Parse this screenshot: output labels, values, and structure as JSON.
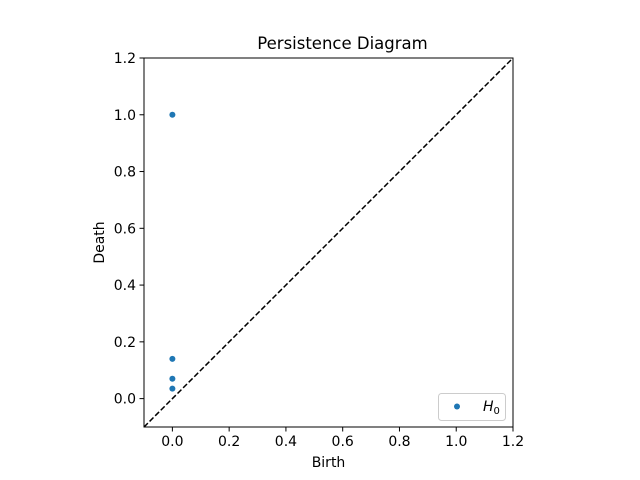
{
  "chart_data": {
    "type": "scatter",
    "title": "Persistence Diagram",
    "xlabel": "Birth",
    "ylabel": "Death",
    "xlim": [
      -0.1,
      1.2
    ],
    "ylim": [
      -0.1,
      1.2
    ],
    "xticks": [
      0.0,
      0.2,
      0.4,
      0.6,
      0.8,
      1.0,
      1.2
    ],
    "yticks": [
      0.0,
      0.2,
      0.4,
      0.6,
      0.8,
      1.0,
      1.2
    ],
    "xtick_labels": [
      "0.0",
      "0.2",
      "0.4",
      "0.6",
      "0.8",
      "1.0",
      "1.2"
    ],
    "ytick_labels": [
      "0.0",
      "0.2",
      "0.4",
      "0.6",
      "0.8",
      "1.0",
      "1.2"
    ],
    "grid": false,
    "legend_position": "bottom-right",
    "diagonal": {
      "style": "dashed",
      "color": "#000000"
    },
    "series": [
      {
        "name": "H_0",
        "color": "#1f77b4",
        "points": [
          {
            "x": 0.0,
            "y": 1.0
          },
          {
            "x": 0.0,
            "y": 0.14
          },
          {
            "x": 0.0,
            "y": 0.07
          },
          {
            "x": 0.0,
            "y": 0.035
          }
        ]
      }
    ]
  },
  "legend": {
    "label_base": "H",
    "label_sub": "0"
  }
}
